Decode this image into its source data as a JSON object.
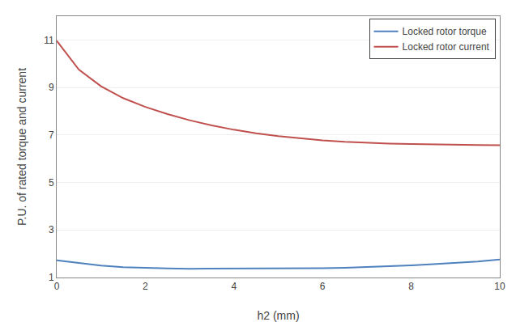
{
  "chart_data": {
    "type": "line",
    "x": [
      0,
      0.5,
      1,
      1.5,
      2,
      2.5,
      3,
      3.5,
      4,
      4.5,
      5,
      5.5,
      6,
      6.5,
      7,
      7.5,
      8,
      8.5,
      9,
      9.5,
      10
    ],
    "series": [
      {
        "name": "Locked rotor torque",
        "color": "#4f81bd",
        "values": [
          1.72,
          1.6,
          1.5,
          1.43,
          1.4,
          1.38,
          1.37,
          1.37,
          1.37,
          1.37,
          1.37,
          1.38,
          1.39,
          1.41,
          1.44,
          1.47,
          1.51,
          1.56,
          1.61,
          1.67,
          1.76
        ]
      },
      {
        "name": "Locked rotor current",
        "color": "#c0504d",
        "values": [
          10.97,
          9.75,
          9.05,
          8.55,
          8.18,
          7.88,
          7.62,
          7.4,
          7.22,
          7.07,
          6.95,
          6.85,
          6.77,
          6.71,
          6.67,
          6.64,
          6.62,
          6.6,
          6.59,
          6.58,
          6.57
        ]
      }
    ],
    "xlabel": "h2 (mm)",
    "ylabel": "P.U. of rated torque and current",
    "xlim": [
      0,
      10
    ],
    "ylim": [
      1,
      12
    ],
    "xticks": [
      0,
      2,
      4,
      6,
      8,
      10
    ],
    "yticks": [
      1,
      3,
      5,
      7,
      9,
      11
    ],
    "grid": "y",
    "legend": "upper right"
  }
}
